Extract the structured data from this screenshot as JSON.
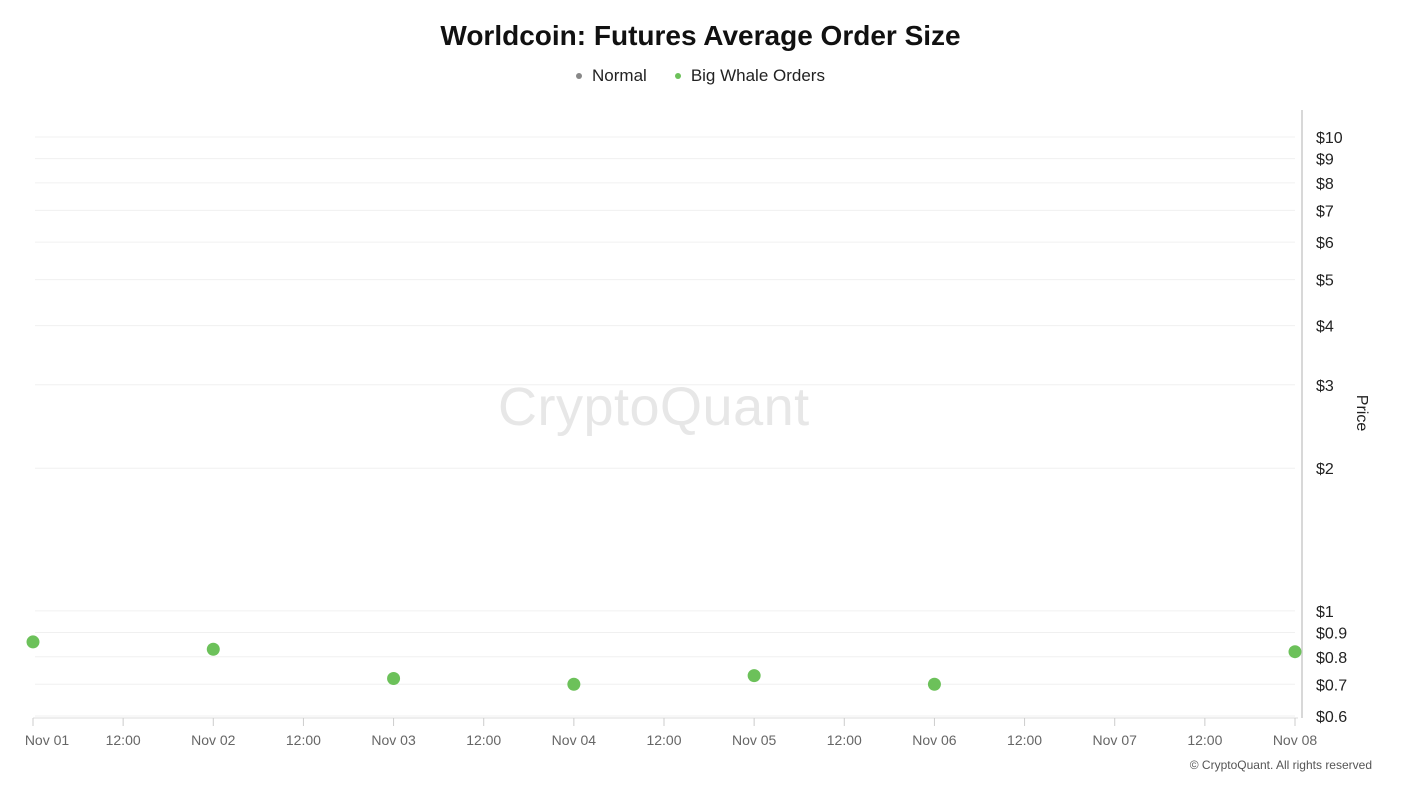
{
  "chart_data": {
    "type": "scatter",
    "title": "Worldcoin: Futures Average Order Size",
    "ylabel": "Price",
    "xlabel": "",
    "y_scale": "log",
    "ylim": [
      0.6,
      10
    ],
    "x_ticks": [
      "Nov 01",
      "12:00",
      "Nov 02",
      "12:00",
      "Nov 03",
      "12:00",
      "Nov 04",
      "12:00",
      "Nov 05",
      "12:00",
      "Nov 06",
      "12:00",
      "Nov 07",
      "12:00",
      "Nov 08"
    ],
    "y_ticks": [
      {
        "value": 10,
        "label": "$10"
      },
      {
        "value": 9,
        "label": "$9"
      },
      {
        "value": 8,
        "label": "$8"
      },
      {
        "value": 7,
        "label": "$7"
      },
      {
        "value": 6,
        "label": "$6"
      },
      {
        "value": 5,
        "label": "$5"
      },
      {
        "value": 4,
        "label": "$4"
      },
      {
        "value": 3,
        "label": "$3"
      },
      {
        "value": 2,
        "label": "$2"
      },
      {
        "value": 1,
        "label": "$1"
      },
      {
        "value": 0.9,
        "label": "$0.9"
      },
      {
        "value": 0.8,
        "label": "$0.8"
      },
      {
        "value": 0.7,
        "label": "$0.7"
      },
      {
        "value": 0.6,
        "label": "$0.6"
      }
    ],
    "grid": true,
    "legend_position": "top-center",
    "series": [
      {
        "name": "Normal",
        "color": "#888888",
        "points": []
      },
      {
        "name": "Big Whale Orders",
        "color": "#6cc15a",
        "points": [
          {
            "x": "Nov 01",
            "y": 0.86
          },
          {
            "x": "Nov 02",
            "y": 0.83
          },
          {
            "x": "Nov 03",
            "y": 0.72
          },
          {
            "x": "Nov 04",
            "y": 0.7
          },
          {
            "x": "Nov 05",
            "y": 0.73
          },
          {
            "x": "Nov 06",
            "y": 0.7
          },
          {
            "x": "Nov 08",
            "y": 0.82
          }
        ]
      }
    ],
    "watermark": "CryptoQuant",
    "copyright": "© CryptoQuant. All rights reserved"
  }
}
